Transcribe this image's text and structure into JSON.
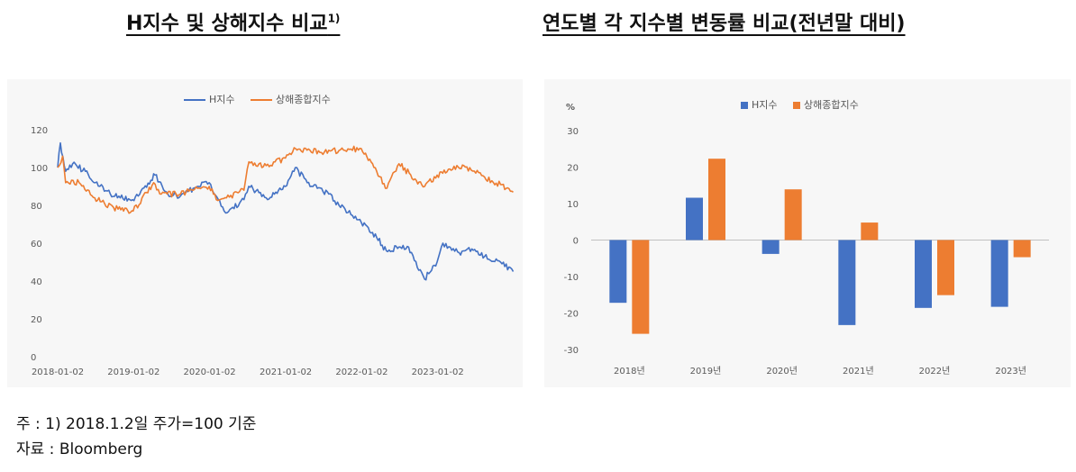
{
  "titles": {
    "left": "H지수 및 상해지수 비교",
    "left_sup": "1)",
    "right": "연도별 각 지수별 변동률 비교(전년말 대비)"
  },
  "notes": {
    "note1": "주 : 1) 2018.1.2일 주가=100 기준",
    "note2": "자료 : Bloomberg"
  },
  "colors": {
    "blue": "#4472c4",
    "orange": "#ed7d31"
  },
  "chart_data": [
    {
      "type": "line",
      "legend": [
        "H지수",
        "상해종합지수"
      ],
      "legend_position": "top-center",
      "ylim": [
        0,
        120
      ],
      "yticks": [
        "0",
        "20",
        "40",
        "60",
        "80",
        "100",
        "120"
      ],
      "xticks": [
        "2018-01-02",
        "2019-01-02",
        "2020-01-02",
        "2021-01-02",
        "2022-01-02",
        "2023-01-02"
      ],
      "grid": false,
      "series": [
        {
          "name": "H지수",
          "color": "#4472c4",
          "x": [
            "2018-01-02",
            "2018-01-15",
            "2018-02-09",
            "2018-03-15",
            "2018-05-15",
            "2018-07-02",
            "2018-09-12",
            "2018-10-30",
            "2018-12-28",
            "2019-04-15",
            "2019-06-15",
            "2019-08-15",
            "2019-10-15",
            "2019-12-31",
            "2020-03-19",
            "2020-06-15",
            "2020-07-08",
            "2020-09-30",
            "2020-11-15",
            "2020-12-31",
            "2021-02-17",
            "2021-04-15",
            "2021-07-28",
            "2021-09-15",
            "2021-12-31",
            "2022-03-15",
            "2022-04-30",
            "2022-06-30",
            "2022-08-15",
            "2022-10-31",
            "2022-12-30",
            "2023-01-27",
            "2023-04-15",
            "2023-06-15",
            "2023-08-15",
            "2023-10-31",
            "2023-12-31"
          ],
          "values": [
            100,
            113,
            98,
            102,
            98,
            92,
            86,
            84,
            83,
            96,
            86,
            85,
            89,
            92,
            76,
            83,
            90,
            84,
            87,
            90,
            100,
            92,
            86,
            80,
            71,
            63,
            56,
            58,
            58,
            41,
            50,
            60,
            55,
            57,
            53,
            50,
            45
          ]
        },
        {
          "name": "상해종합지수",
          "color": "#ed7d31",
          "x": [
            "2018-01-02",
            "2018-01-26",
            "2018-02-09",
            "2018-04-15",
            "2018-06-29",
            "2018-08-15",
            "2018-10-19",
            "2018-12-31",
            "2019-04-08",
            "2019-05-15",
            "2019-08-15",
            "2019-10-15",
            "2019-12-31",
            "2020-02-03",
            "2020-03-23",
            "2020-06-15",
            "2020-07-09",
            "2020-09-30",
            "2020-12-31",
            "2021-02-18",
            "2021-06-15",
            "2021-09-15",
            "2021-12-31",
            "2022-03-15",
            "2022-04-26",
            "2022-06-30",
            "2022-09-15",
            "2022-10-31",
            "2022-12-30",
            "2023-05-08",
            "2023-08-15",
            "2023-10-31",
            "2023-12-31"
          ],
          "values": [
            100,
            106,
            92,
            92,
            84,
            81,
            78,
            77,
            92,
            86,
            86,
            88,
            90,
            83,
            84,
            88,
            103,
            101,
            105,
            110,
            108,
            109,
            110,
            98,
            89,
            102,
            94,
            90,
            96,
            101,
            95,
            91,
            87
          ]
        }
      ]
    },
    {
      "type": "bar",
      "unit_label": "%",
      "legend": [
        "H지수",
        "상해종합지수"
      ],
      "legend_position": "top-center",
      "ylim": [
        -30,
        30
      ],
      "yticks": [
        "30",
        "20",
        "10",
        "0",
        "-10",
        "-20",
        "-30"
      ],
      "categories": [
        "2018년",
        "2019년",
        "2020년",
        "2021년",
        "2022년",
        "2023년"
      ],
      "grid": false,
      "series": [
        {
          "name": "H지수",
          "color": "#4472c4",
          "values": [
            -17.2,
            11.6,
            -3.8,
            -23.3,
            -18.6,
            -18.3
          ]
        },
        {
          "name": "상해종합지수",
          "color": "#ed7d31",
          "values": [
            -25.7,
            22.3,
            13.9,
            4.8,
            -15.1,
            -4.7
          ]
        }
      ]
    }
  ]
}
